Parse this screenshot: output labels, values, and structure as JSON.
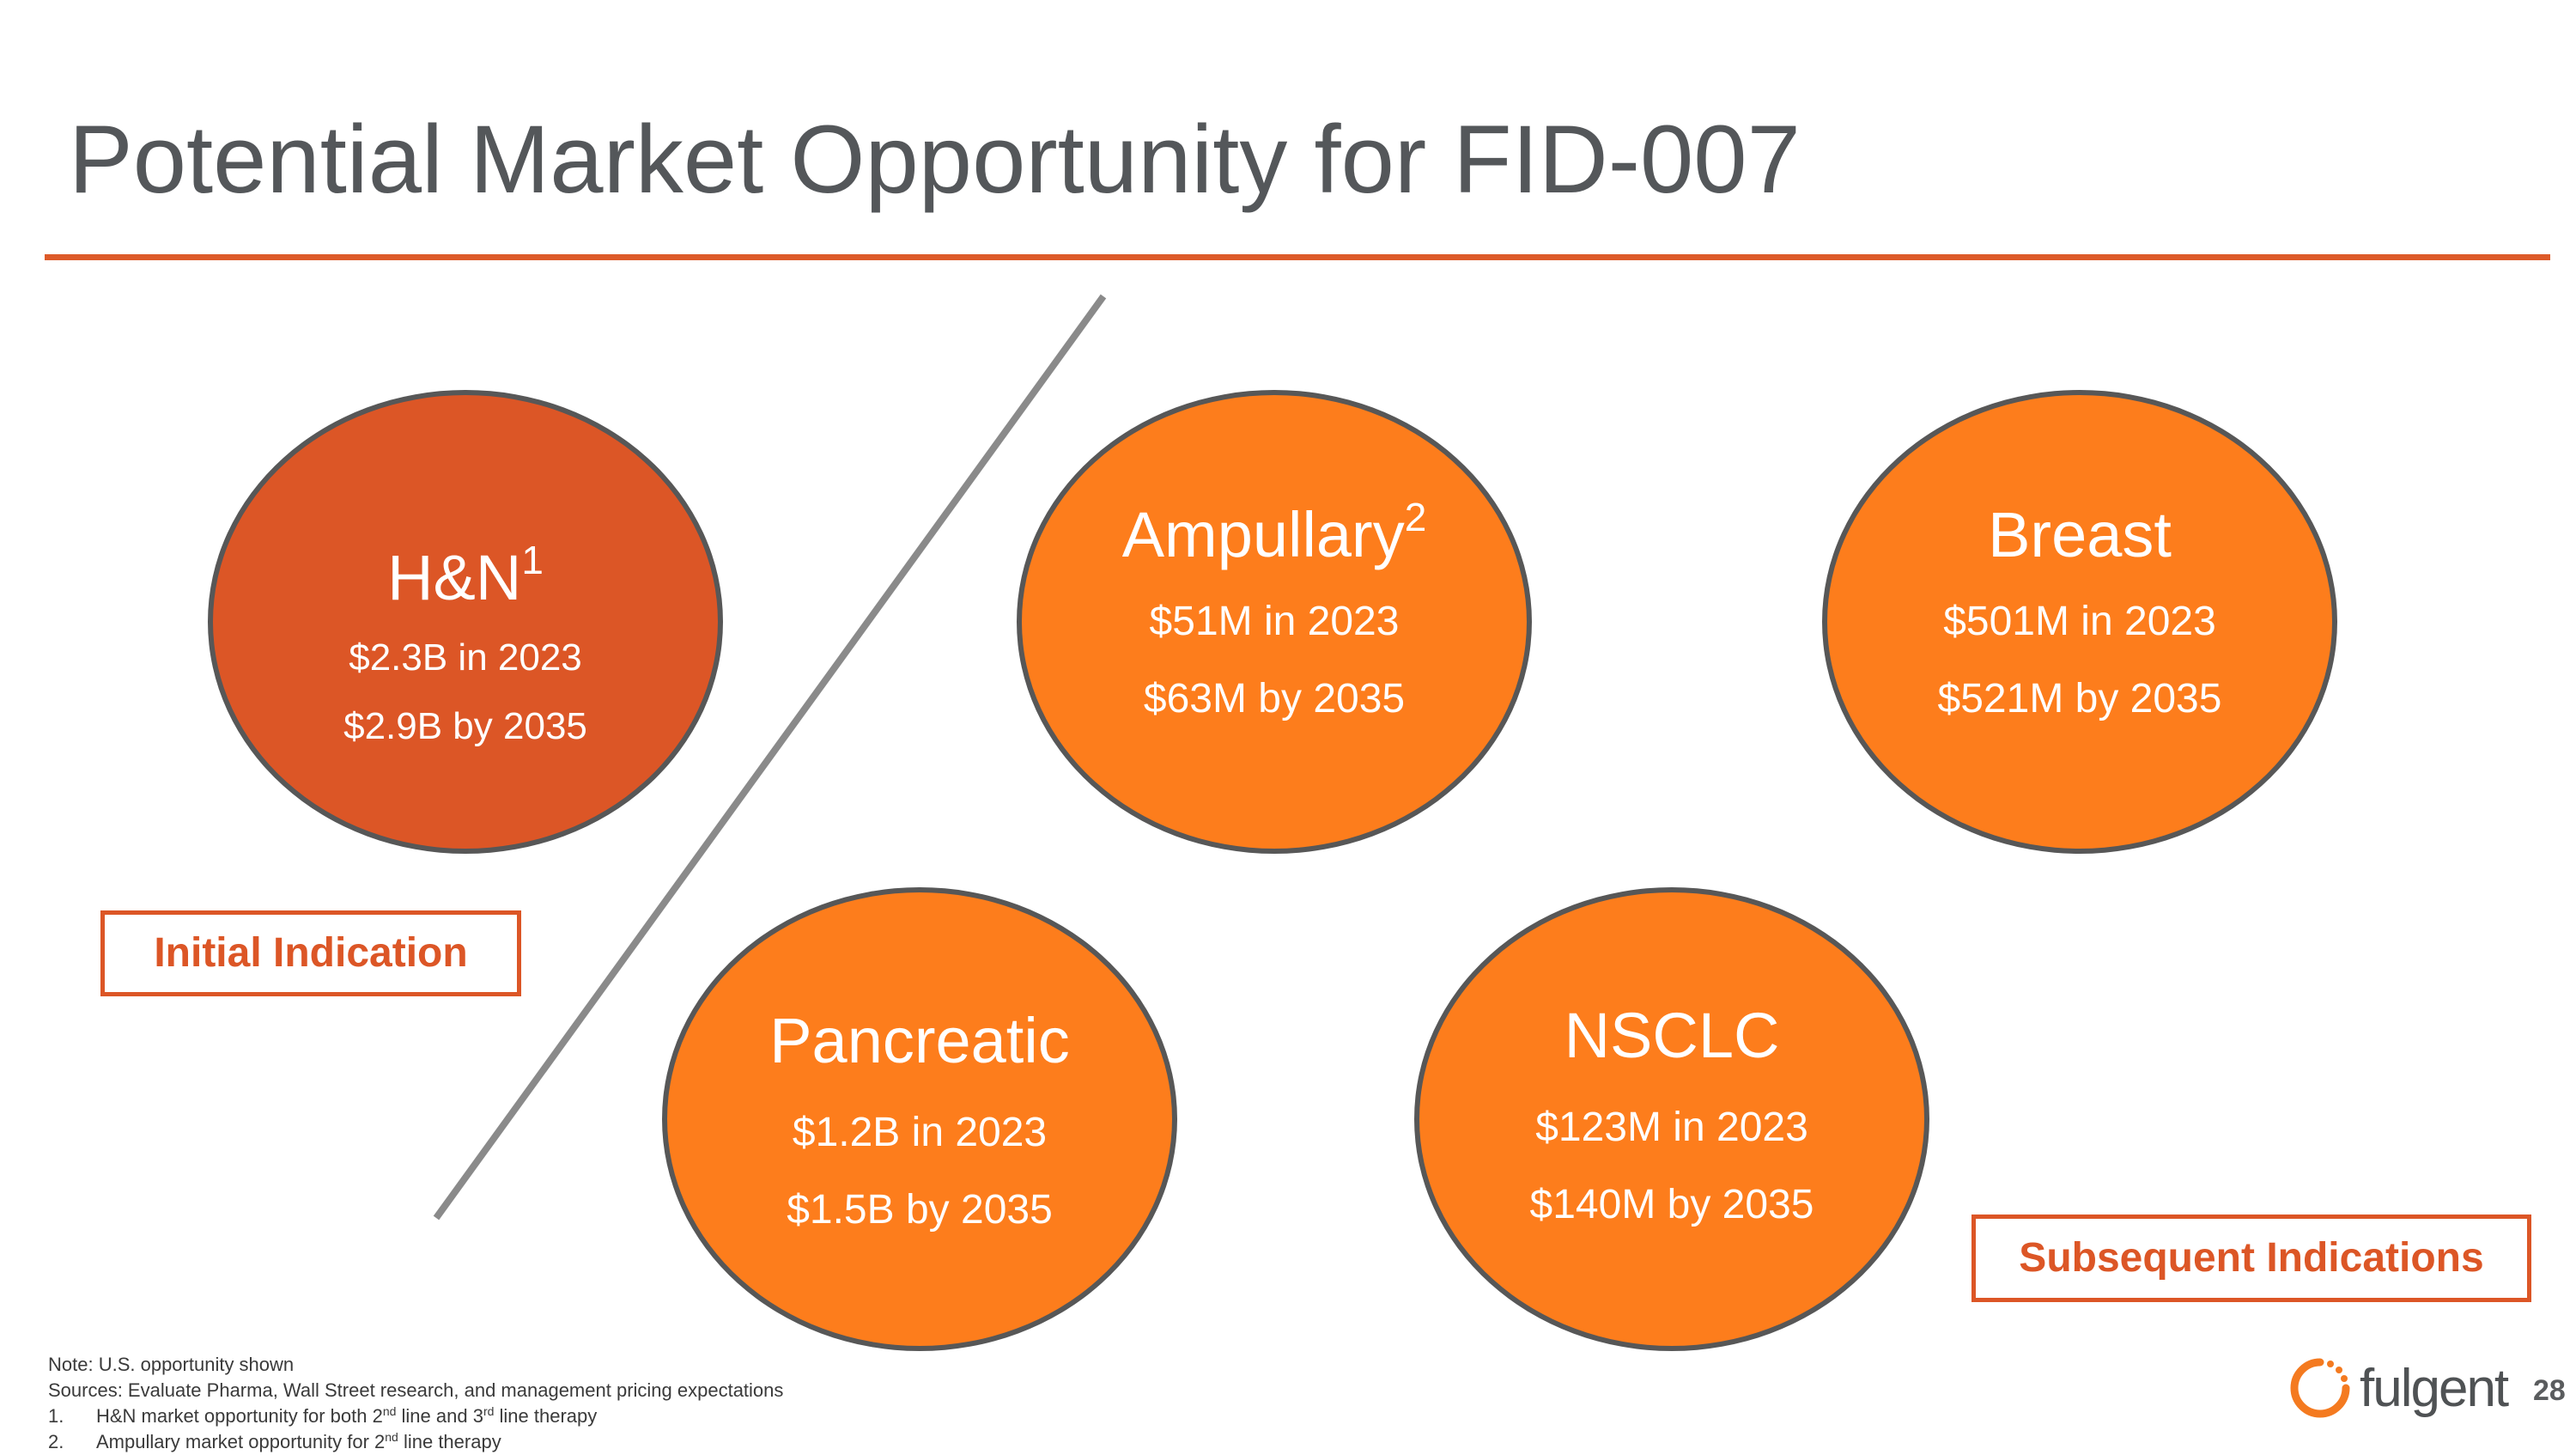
{
  "slide": {
    "title": "Potential Market Opportunity for FID-007",
    "page_number": "28"
  },
  "bubbles": [
    {
      "name": "H&N",
      "sup": "1",
      "value_2023": "$2.3B in 2023",
      "value_2035": "$2.9B by 2035",
      "group": "initial",
      "fill": "#dc5626"
    },
    {
      "name": "Ampullary",
      "sup": "2",
      "value_2023": "$51M in 2023",
      "value_2035": "$63M by 2035",
      "group": "subsequent",
      "fill": "#fd7d1c"
    },
    {
      "name": "Breast",
      "sup": "",
      "value_2023": "$501M in 2023",
      "value_2035": "$521M by 2035",
      "group": "subsequent",
      "fill": "#fd7d1c"
    },
    {
      "name": "Pancreatic",
      "sup": "",
      "value_2023": "$1.2B in 2023",
      "value_2035": "$1.5B by 2035",
      "group": "subsequent",
      "fill": "#fd7d1c"
    },
    {
      "name": "NSCLC",
      "sup": "",
      "value_2023": "$123M in 2023",
      "value_2035": "$140M by 2035",
      "group": "subsequent",
      "fill": "#fd7d1c"
    }
  ],
  "labels": {
    "initial": "Initial Indication",
    "subsequent": "Subsequent Indications"
  },
  "footnotes": {
    "note": "Note: U.S. opportunity shown",
    "sources": "Sources: Evaluate Pharma, Wall Street research, and management pricing expectations",
    "items": [
      {
        "num": "1.",
        "text_a": "H&N market opportunity for both 2",
        "sup_a": "nd",
        "text_b": " line and 3",
        "sup_b": "rd",
        "text_c": " line therapy"
      },
      {
        "num": "2.",
        "text_a": "Ampullary market opportunity for 2",
        "sup_a": "nd",
        "text_b": " line therapy"
      }
    ]
  },
  "logo": {
    "text": "fulgent",
    "icon": "fulgent-ring-icon"
  },
  "colors": {
    "accent": "#dd5a29",
    "initial_fill": "#dc5626",
    "subsequent_fill": "#fd7d1c",
    "outline": "#575757",
    "divider": "#8a8a8a"
  }
}
